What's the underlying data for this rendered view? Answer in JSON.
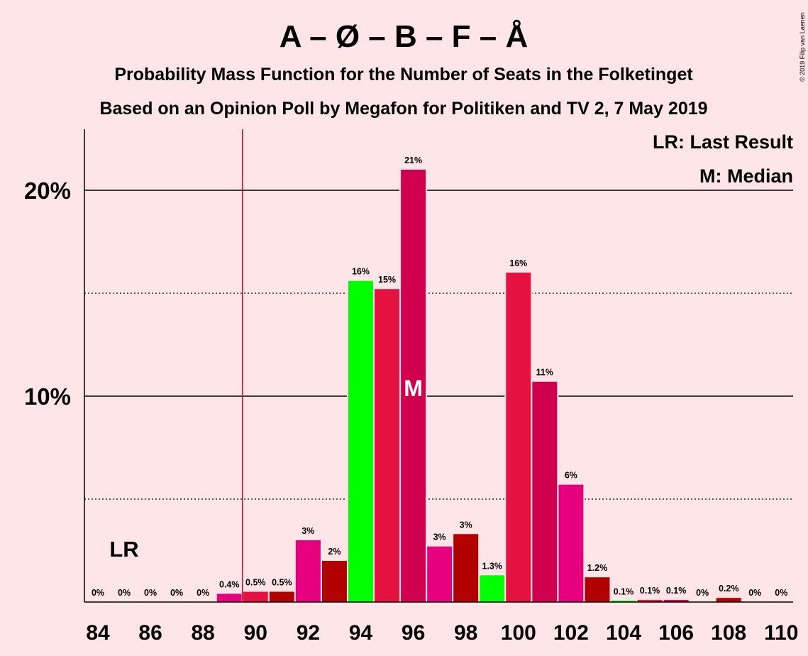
{
  "chart_data": {
    "type": "bar",
    "title": "A – Ø – B – F – Å",
    "subtitle_line1": "Probability Mass Function for the Number of Seats in the Folketinget",
    "subtitle_line2": "Based on an Opinion Poll by Megafon for Politiken and TV 2, 7 May 2019",
    "copyright": "© 2019 Filip van Laenen",
    "legend": {
      "lr": "LR: Last Result",
      "m": "M: Median",
      "placement": "top-right"
    },
    "last_result_seat": 89.5,
    "last_result_label": "LR",
    "median_seat": 96,
    "median_label": "M",
    "ylim": [
      0,
      23
    ],
    "y_ticks": [
      {
        "value": 10,
        "label": "10%"
      },
      {
        "value": 20,
        "label": "20%"
      }
    ],
    "y_dotted_lines": [
      5,
      15
    ],
    "x_tick_labels": [
      "84",
      "86",
      "88",
      "90",
      "92",
      "94",
      "96",
      "98",
      "100",
      "102",
      "104",
      "106",
      "108",
      "110"
    ],
    "x_tick_values": [
      84,
      86,
      88,
      90,
      92,
      94,
      96,
      98,
      100,
      102,
      104,
      106,
      108,
      110
    ],
    "seats": [
      84,
      85,
      86,
      87,
      88,
      89,
      90,
      91,
      92,
      93,
      94,
      95,
      96,
      97,
      98,
      99,
      100,
      101,
      102,
      103,
      104,
      105,
      106,
      107,
      108,
      109,
      110
    ],
    "values": [
      0,
      0,
      0,
      0,
      0,
      0.4,
      0.5,
      0.5,
      3.0,
      2.0,
      15.6,
      15.2,
      21.0,
      2.7,
      3.3,
      1.3,
      16.0,
      10.7,
      5.7,
      1.2,
      0.05,
      0.1,
      0.1,
      0,
      0.2,
      0,
      0
    ],
    "labels": [
      "0%",
      "0%",
      "0%",
      "0%",
      "0%",
      "0.4%",
      "0.5%",
      "0.5%",
      "3%",
      "2%",
      "16%",
      "15%",
      "21%",
      "3%",
      "3%",
      "1.3%",
      "16%",
      "11%",
      "6%",
      "1.2%",
      "0.1%",
      "0.1%",
      "0.1%",
      "0%",
      "0.2%",
      "0%",
      "0%"
    ],
    "colors": [
      "#E6007E",
      "#B20000",
      "#00FF00",
      "#E4123F",
      "#D1004E",
      "#E6007E",
      "#E4123F",
      "#B20000",
      "#E6007E",
      "#B20000",
      "#00FF00",
      "#E4123F",
      "#D1004E",
      "#E6007E",
      "#B20000",
      "#00FF00",
      "#E4123F",
      "#D1004E",
      "#E6007E",
      "#B20000",
      "#00FF00",
      "#E4123F",
      "#D1004E",
      "#E6007E",
      "#B20000",
      "#00FF00",
      "#E4123F"
    ],
    "background_color": "#FFE4E8",
    "lr_line_color": "#C8102E",
    "grid": true
  }
}
